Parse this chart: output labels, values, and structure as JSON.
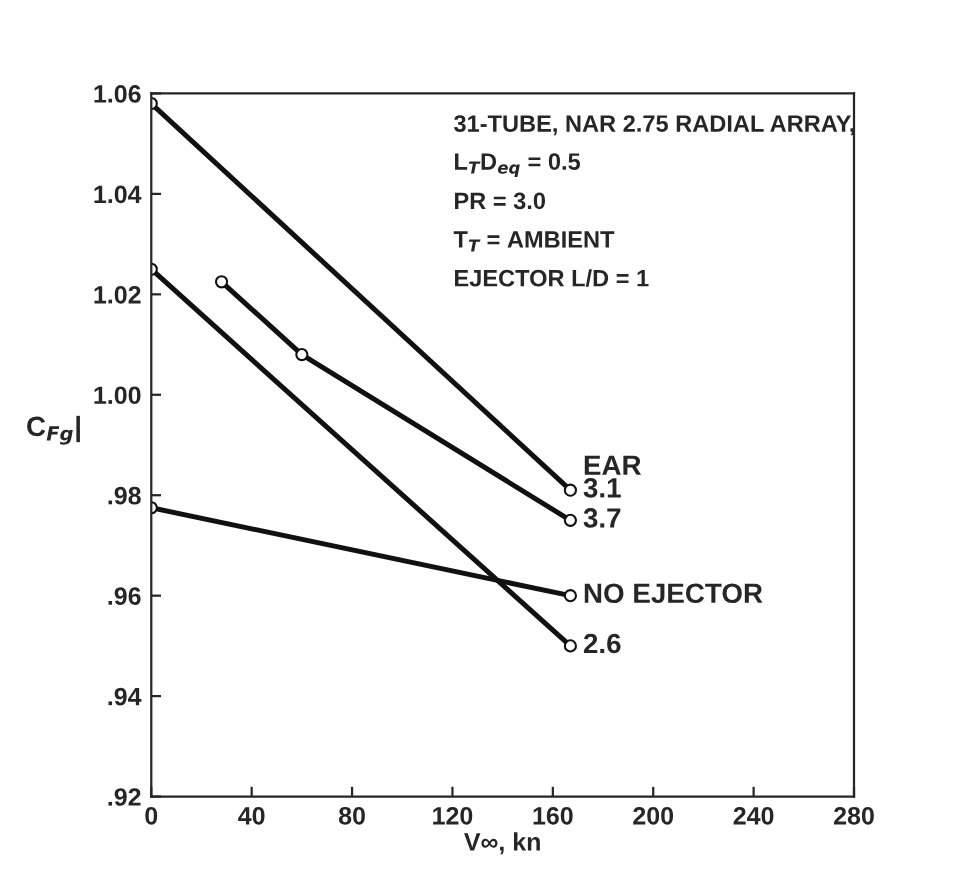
{
  "chart_data": {
    "type": "line",
    "xlabel": "V∞, kn",
    "ylabel": "C$_{Fg}$|",
    "xlim": [
      0,
      280
    ],
    "xticks": [
      0,
      40,
      80,
      120,
      160,
      200,
      240,
      280
    ],
    "ylim": [
      0.92,
      1.06
    ],
    "yticks": [
      {
        "value": 0.92,
        "label": ".92"
      },
      {
        "value": 0.94,
        "label": ".94"
      },
      {
        "value": 0.96,
        "label": ".96"
      },
      {
        "value": 0.98,
        "label": ".98"
      },
      {
        "value": 1.0,
        "label": "1.00"
      },
      {
        "value": 1.02,
        "label": "1.02"
      },
      {
        "value": 1.04,
        "label": "1.04"
      },
      {
        "value": 1.06,
        "label": "1.06"
      }
    ],
    "grid": false,
    "legend": false,
    "marker": "circle",
    "line_style": "solid",
    "annotations": [
      "31-TUBE, NAR 2.75 RADIAL ARRAY,",
      "L$_{T}$D$_{eq}$ = 0.5",
      "PR = 3.0",
      "T$_{T}$ = AMBIENT",
      "EJECTOR L/D = 1",
      "EAR"
    ],
    "series": [
      {
        "name": "3.1",
        "color": "#111111",
        "x": [
          0,
          167
        ],
        "values": [
          1.058,
          0.981
        ]
      },
      {
        "name": "3.7",
        "color": "#111111",
        "x": [
          28,
          60,
          167
        ],
        "values": [
          1.0225,
          1.008,
          0.975
        ]
      },
      {
        "name": "NO EJECTOR",
        "color": "#111111",
        "x": [
          0,
          167
        ],
        "values": [
          0.9775,
          0.96
        ]
      },
      {
        "name": "2.6",
        "color": "#111111",
        "x": [
          0,
          167
        ],
        "values": [
          1.025,
          0.95
        ]
      }
    ]
  }
}
